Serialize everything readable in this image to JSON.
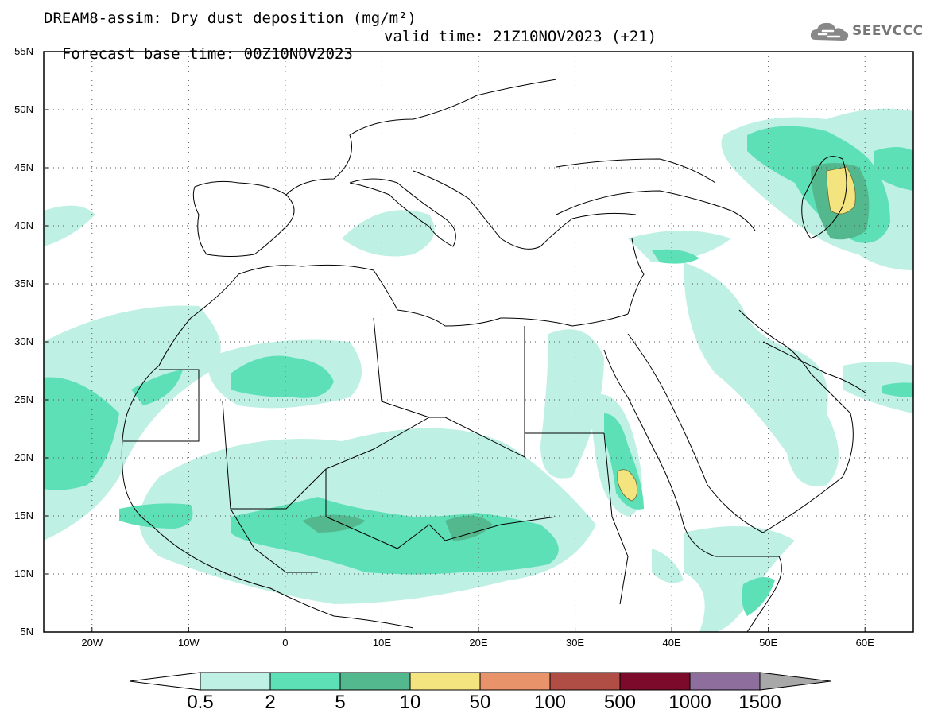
{
  "header": {
    "title_line1": "DREAM8-assim: Dry dust deposition (mg/m²)",
    "title_line2_left": "Forecast base time: 00Z10NOV2023",
    "title_line2_right": "valid time: 21Z10NOV2023 (+21)"
  },
  "logo": {
    "text": "SEEVCCC",
    "icon": "cloud-icon",
    "color": "#777777"
  },
  "map": {
    "lat_labels": [
      "55N",
      "50N",
      "45N",
      "40N",
      "35N",
      "30N",
      "25N",
      "20N",
      "15N",
      "10N",
      "5N"
    ],
    "lon_labels": [
      "20W",
      "10W",
      "0",
      "10E",
      "20E",
      "30E",
      "40E",
      "50E",
      "60E"
    ],
    "lon_range": [
      -25,
      65
    ],
    "lat_range": [
      5,
      55
    ]
  },
  "colorbar": {
    "labels": [
      "0.5",
      "2",
      "5",
      "10",
      "50",
      "100",
      "500",
      "1000",
      "1500"
    ],
    "colors": [
      "#bff0e4",
      "#5ee0b6",
      "#54b88e",
      "#f4e480",
      "#e9936a",
      "#b04e45",
      "#7c0a2a",
      "#8d6e9c"
    ],
    "end_colors": {
      "low": "#ffffff",
      "high": "#a8a8a8"
    }
  }
}
